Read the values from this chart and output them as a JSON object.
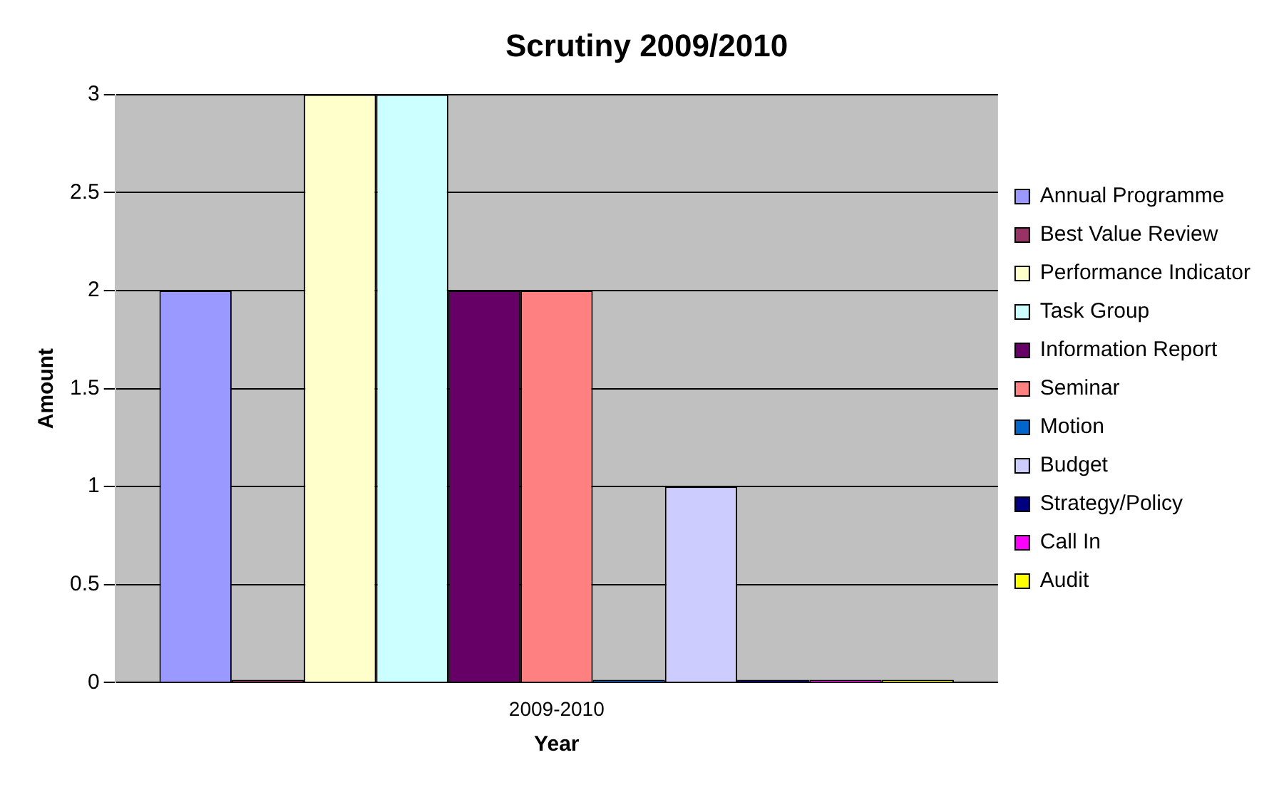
{
  "chart_data": {
    "type": "bar",
    "title": "Scrutiny 2009/2010",
    "xlabel": "Year",
    "ylabel": "Amount",
    "categories": [
      "2009-2010"
    ],
    "series": [
      {
        "name": "Annual Programme",
        "color": "#9999ff",
        "values": [
          2
        ]
      },
      {
        "name": "Best Value Review",
        "color": "#993366",
        "values": [
          0
        ]
      },
      {
        "name": "Performance Indicator",
        "color": "#ffffcc",
        "values": [
          3
        ]
      },
      {
        "name": "Task Group",
        "color": "#ccffff",
        "values": [
          3
        ]
      },
      {
        "name": "Information Report",
        "color": "#660066",
        "values": [
          2
        ]
      },
      {
        "name": "Seminar",
        "color": "#ff8080",
        "values": [
          2
        ]
      },
      {
        "name": "Motion",
        "color": "#0066cc",
        "values": [
          0
        ]
      },
      {
        "name": "Budget",
        "color": "#ccccff",
        "values": [
          1
        ]
      },
      {
        "name": "Strategy/Policy",
        "color": "#000080",
        "values": [
          0
        ]
      },
      {
        "name": "Call In",
        "color": "#ff00ff",
        "values": [
          0
        ]
      },
      {
        "name": "Audit",
        "color": "#ffff00",
        "values": [
          0
        ]
      }
    ],
    "ylim": [
      0,
      3
    ],
    "yticks": [
      0,
      0.5,
      1,
      1.5,
      2,
      2.5,
      3
    ],
    "grid": "y",
    "legend": "right"
  }
}
